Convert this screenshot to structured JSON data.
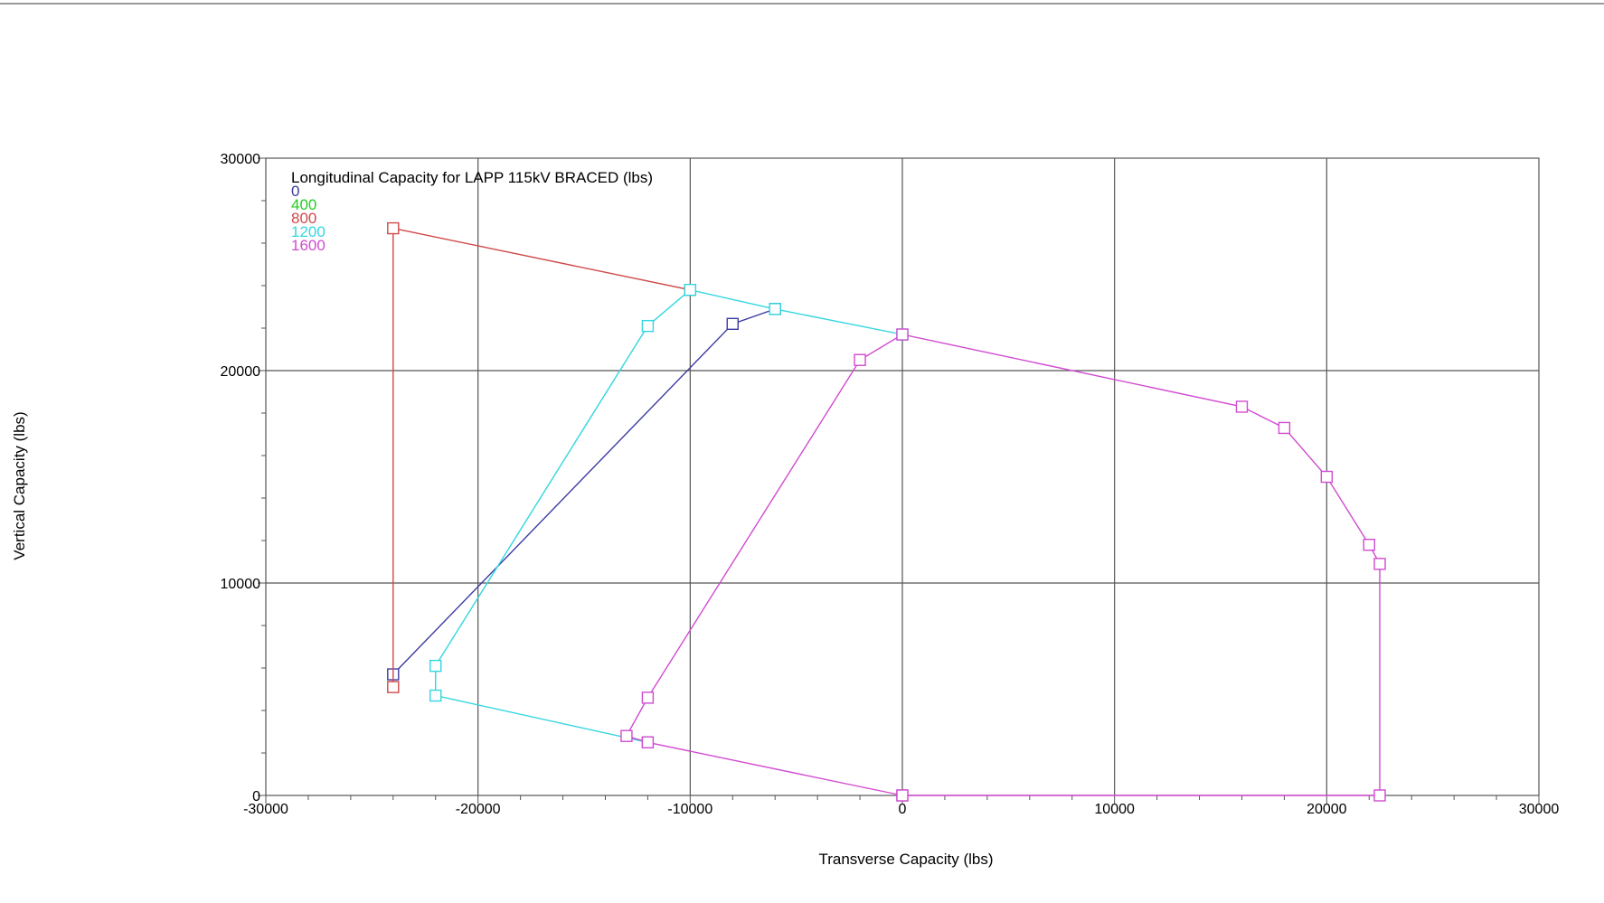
{
  "chart_data": {
    "type": "line",
    "title": "Longitudinal Capacity for LAPP 115kV BRACED (lbs)",
    "xlabel": "Transverse Capacity (lbs)",
    "ylabel": "Vertical Capacity (lbs)",
    "xlim": [
      -30000,
      30000
    ],
    "ylim": [
      0,
      30000
    ],
    "xticks": [
      -30000,
      -20000,
      -10000,
      0,
      10000,
      20000,
      30000
    ],
    "yticks": [
      0,
      10000,
      20000,
      30000
    ],
    "grid": true,
    "legend_position": "top-left",
    "series": [
      {
        "name": "0",
        "color": "#3b3ba0",
        "points": [
          [
            -24000,
            5700
          ],
          [
            -8000,
            22200
          ],
          [
            -6000,
            22900
          ]
        ]
      },
      {
        "name": "400",
        "color": "#22cc22",
        "points": []
      },
      {
        "name": "800",
        "color": "#d04848",
        "points": [
          [
            -24000,
            5100
          ],
          [
            -24000,
            26700
          ],
          [
            -10000,
            23800
          ]
        ]
      },
      {
        "name": "1200",
        "color": "#33d6e0",
        "points": [
          [
            -12000,
            2500
          ],
          [
            -22000,
            4700
          ],
          [
            -22000,
            6100
          ],
          [
            -12000,
            22100
          ],
          [
            -10000,
            23800
          ],
          [
            -6000,
            22900
          ],
          [
            0,
            21700
          ]
        ]
      },
      {
        "name": "1600",
        "color": "#d04bd0",
        "points": [
          [
            0,
            0
          ],
          [
            -12000,
            2500
          ],
          [
            -13000,
            2800
          ],
          [
            -12000,
            4600
          ],
          [
            -2000,
            20500
          ],
          [
            0,
            21700
          ],
          [
            16000,
            18300
          ],
          [
            18000,
            17300
          ],
          [
            20000,
            15000
          ],
          [
            22000,
            11800
          ],
          [
            22500,
            10900
          ],
          [
            22500,
            0
          ],
          [
            0,
            0
          ]
        ]
      }
    ]
  }
}
